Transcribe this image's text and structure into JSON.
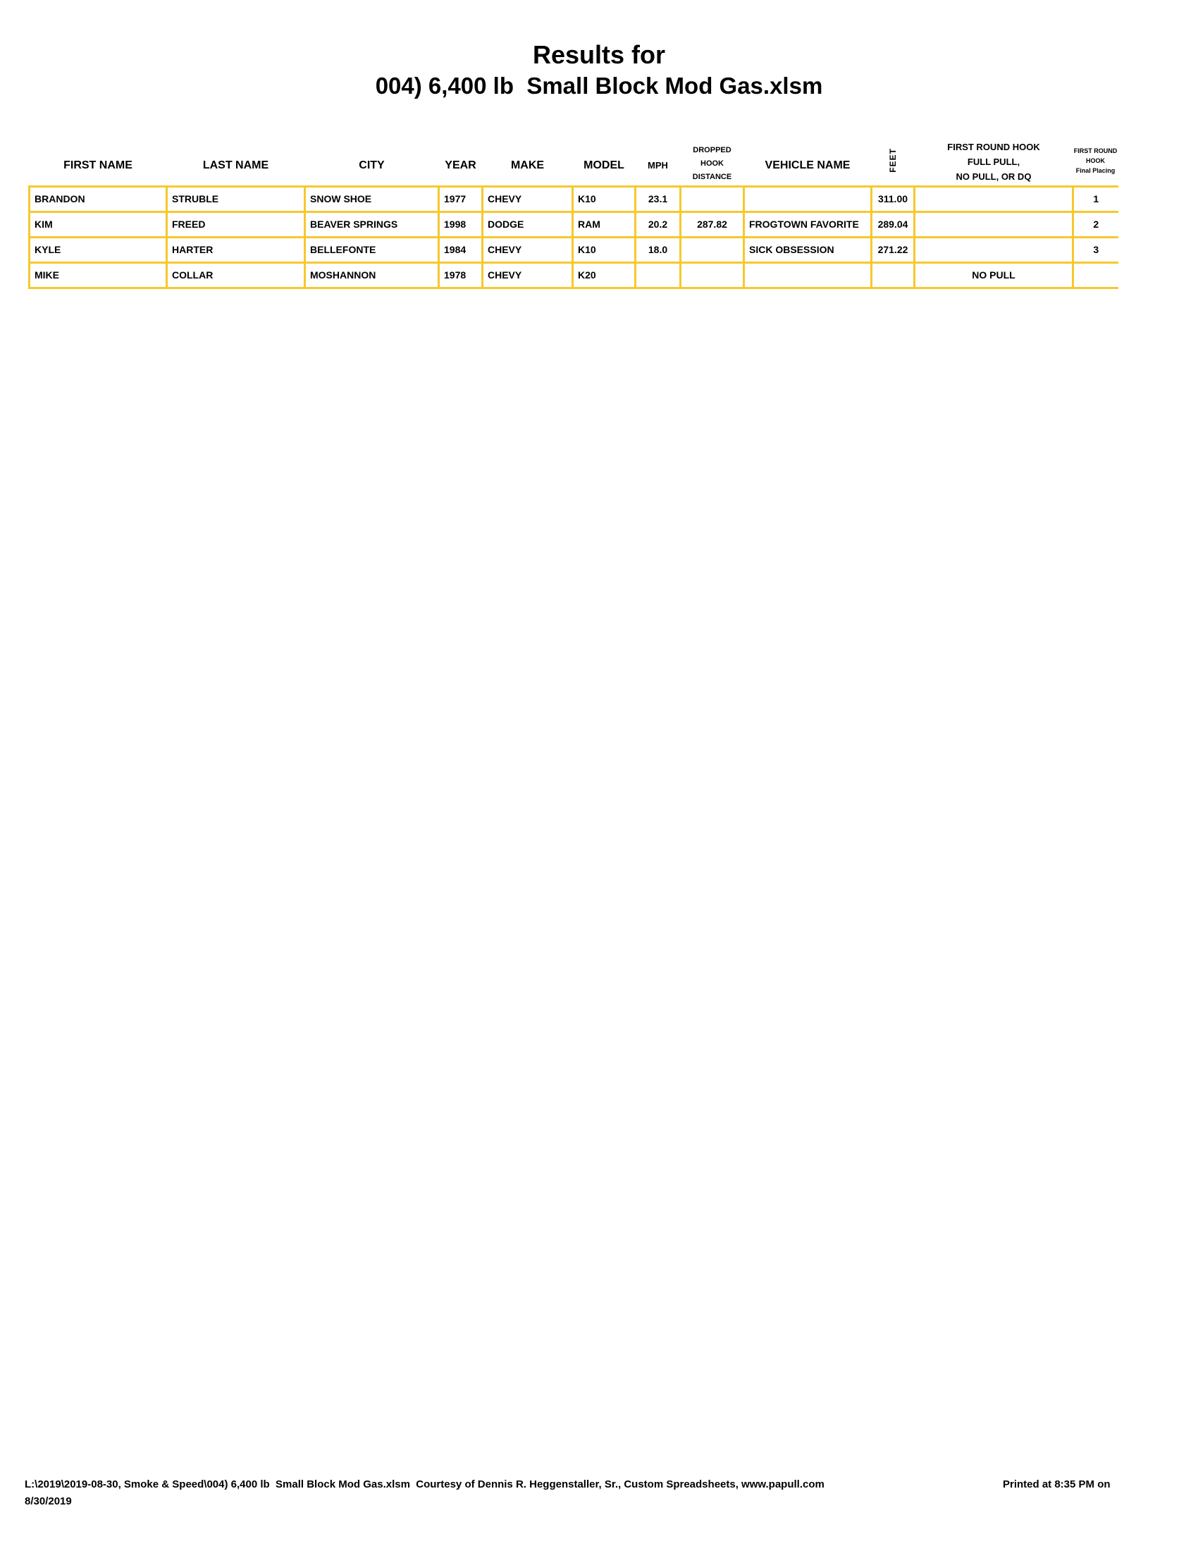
{
  "title": {
    "line1": "Results for",
    "line2": "004) 6,400 lb  Small Block Mod Gas.xlsm"
  },
  "table": {
    "columns": [
      {
        "key": "first_name",
        "label": "FIRST NAME"
      },
      {
        "key": "last_name",
        "label": "LAST NAME"
      },
      {
        "key": "city",
        "label": "CITY"
      },
      {
        "key": "year",
        "label": "YEAR"
      },
      {
        "key": "make",
        "label": "MAKE"
      },
      {
        "key": "model",
        "label": "MODEL"
      },
      {
        "key": "mph",
        "label": "MPH"
      },
      {
        "key": "dropped",
        "label": "DROPPED\nHOOK\nDISTANCE"
      },
      {
        "key": "vehicle",
        "label": "VEHICLE NAME"
      },
      {
        "key": "feet",
        "label": "FEET"
      },
      {
        "key": "hook",
        "label": "FIRST ROUND HOOK\nFULL PULL,\nNO PULL, OR DQ"
      },
      {
        "key": "placing",
        "label": "FIRST ROUND\nHOOK\nFinal Placing"
      }
    ],
    "rows": [
      {
        "first_name": "BRANDON",
        "last_name": "STRUBLE",
        "city": "SNOW SHOE",
        "year": "1977",
        "make": "CHEVY",
        "model": "K10",
        "mph": "23.1",
        "dropped": "",
        "vehicle": "",
        "feet": "311.00",
        "hook": "",
        "placing": "1"
      },
      {
        "first_name": "KIM",
        "last_name": "FREED",
        "city": "BEAVER SPRINGS",
        "year": "1998",
        "make": "DODGE",
        "model": "RAM",
        "mph": "20.2",
        "dropped": "287.82",
        "vehicle": "FROGTOWN FAVORITE",
        "feet": "289.04",
        "hook": "",
        "placing": "2"
      },
      {
        "first_name": "KYLE",
        "last_name": "HARTER",
        "city": "BELLEFONTE",
        "year": "1984",
        "make": "CHEVY",
        "model": "K10",
        "mph": "18.0",
        "dropped": "",
        "vehicle": "SICK OBSESSION",
        "feet": "271.22",
        "hook": "",
        "placing": "3"
      },
      {
        "first_name": "MIKE",
        "last_name": "COLLAR",
        "city": "MOSHANNON",
        "year": "1978",
        "make": "CHEVY",
        "model": "K20",
        "mph": "",
        "dropped": "",
        "vehicle": "",
        "feet": "",
        "hook": "NO PULL",
        "placing": ""
      }
    ]
  },
  "footer": {
    "path_and_courtesy": "L:\\2019\\2019-08-30, Smoke & Speed\\004) 6,400 lb  Small Block Mod Gas.xlsm  Courtesy of Dennis R. Heggenstaller, Sr., Custom Spreadsheets, www.papull.com",
    "printed": "Printed at 8:35 PM on",
    "date": "8/30/2019"
  },
  "colors": {
    "grid_yellow": "#f6c82e",
    "text": "#000000",
    "page_background": "#ffffff"
  }
}
